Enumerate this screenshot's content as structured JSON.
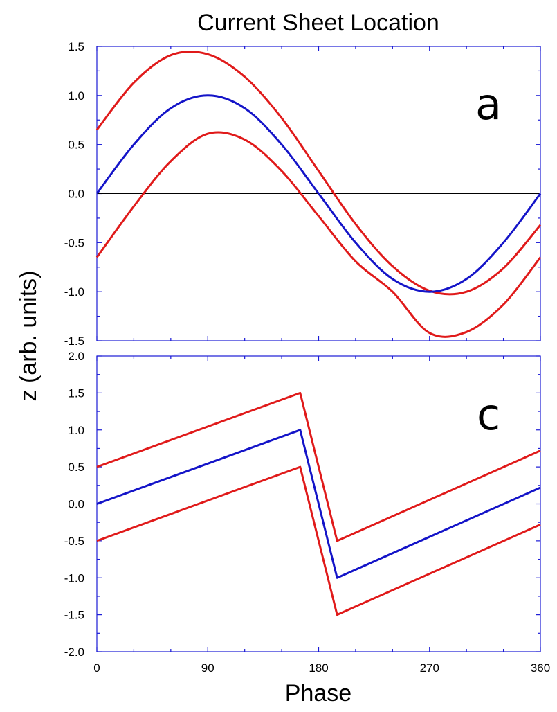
{
  "figure": {
    "title": "Current Sheet Location",
    "ylabel": "z (arb. units)",
    "xlabel": "Phase"
  },
  "colors": {
    "frame": "#1a1ad6",
    "central": "#1414c8",
    "offset": "#e01a1a",
    "zero_line": "#000000"
  },
  "chart_data": [
    {
      "type": "line",
      "panel_label": "a",
      "xlim": [
        0,
        360
      ],
      "ylim": [
        -1.5,
        1.5
      ],
      "yticks": [
        "1.5",
        "1.0",
        "0.5",
        "0.0",
        "-0.5",
        "-1.0",
        "-1.5"
      ],
      "ytick_values": [
        1.5,
        1.0,
        0.5,
        0.0,
        -0.5,
        -1.0,
        -1.5
      ],
      "xtick_values": [
        0,
        90,
        180,
        270,
        360
      ],
      "xtick_labels": [
        "",
        "",
        "",
        "",
        ""
      ],
      "zero_line": true,
      "x": [
        0,
        30,
        60,
        90,
        120,
        150,
        180,
        210,
        240,
        270,
        300,
        330,
        360
      ],
      "series": [
        {
          "color": "#e01a1a",
          "values": [
            0.65,
            1.13,
            1.41,
            1.42,
            1.19,
            0.77,
            0.23,
            -0.31,
            -0.74,
            -0.99,
            -1.0,
            -0.76,
            -0.32
          ]
        },
        {
          "color": "#1414c8",
          "values": [
            0.0,
            0.5,
            0.87,
            1.0,
            0.87,
            0.5,
            0.0,
            -0.5,
            -0.87,
            -1.0,
            -0.87,
            -0.5,
            0.0
          ]
        },
        {
          "color": "#e01a1a",
          "values": [
            -0.65,
            -0.13,
            0.33,
            0.61,
            0.55,
            0.23,
            -0.23,
            -0.69,
            -1.0,
            -1.42,
            -1.41,
            -1.13,
            -0.65
          ]
        }
      ]
    },
    {
      "type": "line",
      "panel_label": "c",
      "xlim": [
        0,
        360
      ],
      "ylim": [
        -2.0,
        2.0
      ],
      "yticks": [
        "2.0",
        "1.5",
        "1.0",
        "0.5",
        "0.0",
        "-0.5",
        "-1.0",
        "-1.5",
        "-2.0"
      ],
      "ytick_values": [
        2.0,
        1.5,
        1.0,
        0.5,
        0.0,
        -0.5,
        -1.0,
        -1.5,
        -2.0
      ],
      "xtick_values": [
        0,
        90,
        180,
        270,
        360
      ],
      "xtick_labels": [
        "0",
        "90",
        "180",
        "270",
        "360"
      ],
      "zero_line": true,
      "series": [
        {
          "color": "#e01a1a",
          "x": [
            0,
            165,
            195,
            360
          ],
          "values": [
            0.5,
            1.5,
            -0.5,
            0.72
          ]
        },
        {
          "color": "#1414c8",
          "x": [
            0,
            165,
            195,
            360
          ],
          "values": [
            0.0,
            1.0,
            -1.0,
            0.22
          ]
        },
        {
          "color": "#e01a1a",
          "x": [
            0,
            165,
            195,
            360
          ],
          "values": [
            -0.5,
            0.5,
            -1.5,
            -0.28
          ]
        }
      ]
    }
  ]
}
